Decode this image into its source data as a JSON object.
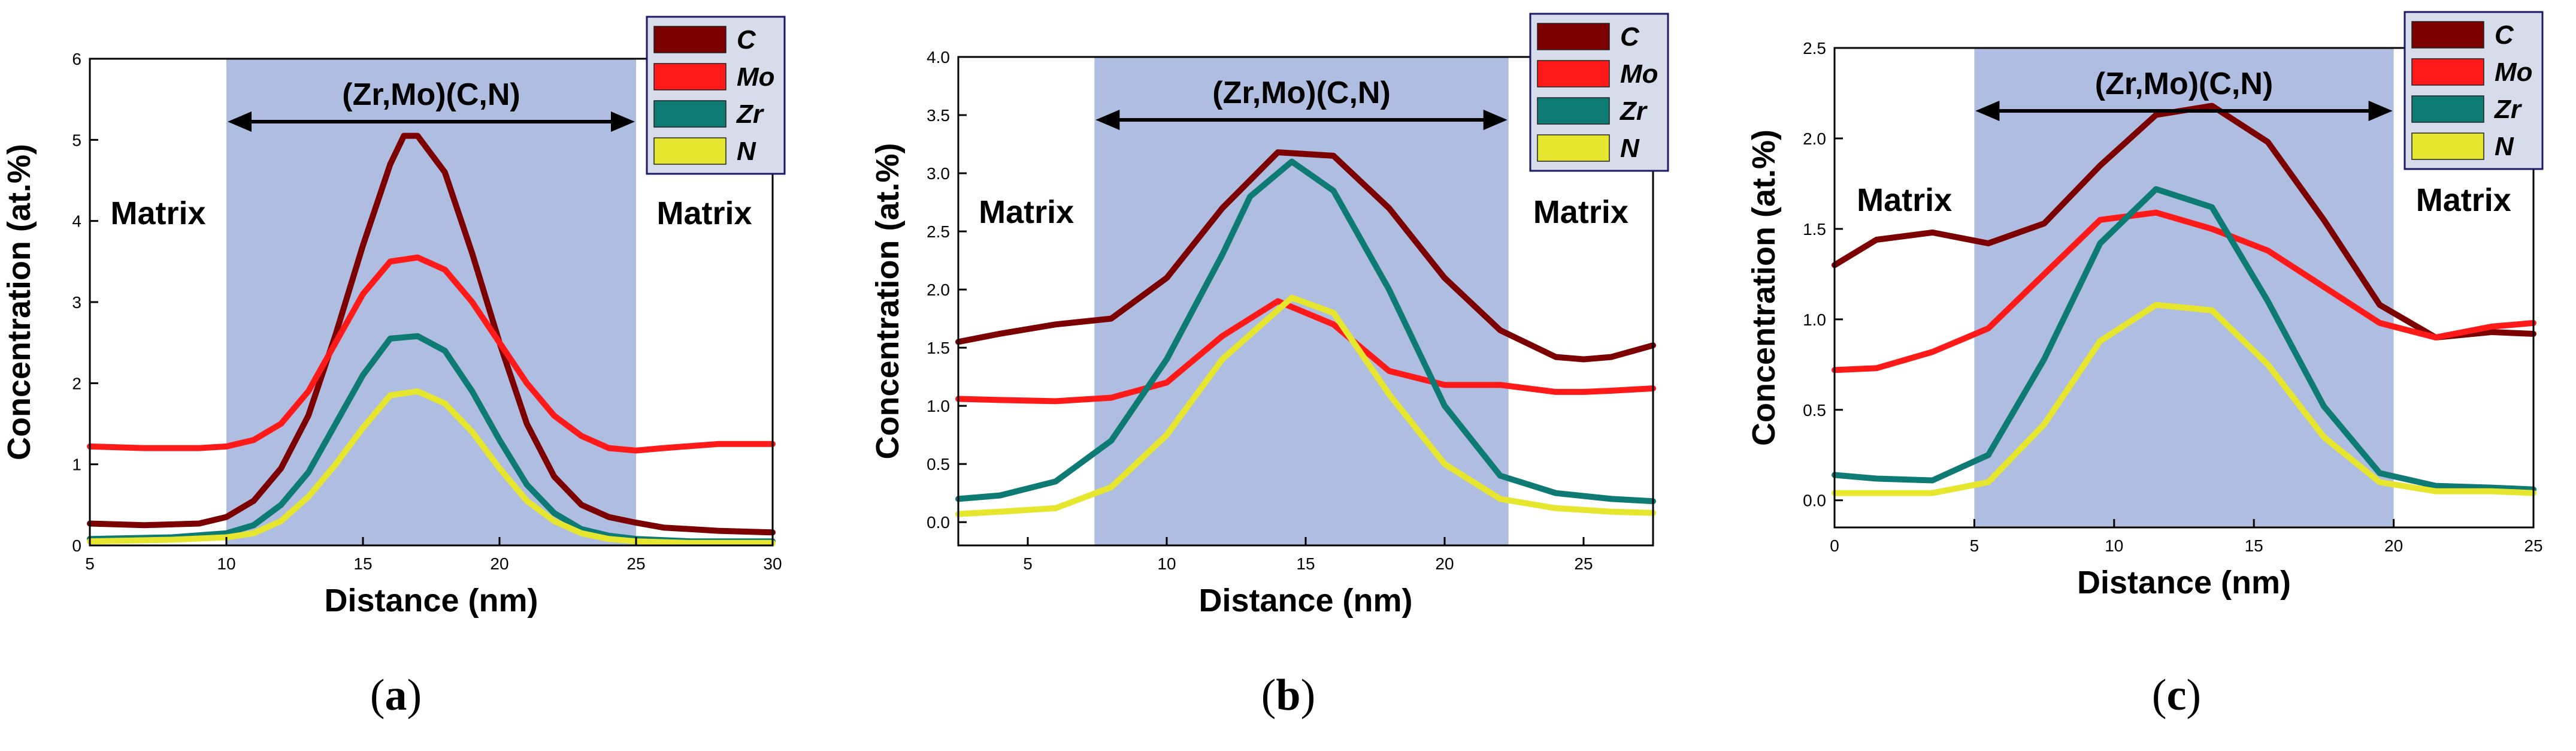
{
  "colors": {
    "C": "#7d0000",
    "Mo": "#ff1a1a",
    "Zr": "#0d7a74",
    "N": "#e6e62e",
    "shade": "#aebde0",
    "legend_bg": "#d6dcea"
  },
  "chart_data": [
    {
      "type": "line",
      "title": "",
      "xlabel": "Distance (nm)",
      "ylabel": "Concentration (at.%)",
      "xlim": [
        5,
        30
      ],
      "ylim": [
        0,
        6
      ],
      "xticks": [
        5,
        10,
        15,
        20,
        25,
        30
      ],
      "yticks": [
        0,
        1,
        2,
        3,
        4,
        5,
        6
      ],
      "precipitate_region": [
        10,
        25
      ],
      "precipitate_label": "(Zr,Mo)(C,N)",
      "matrix_label_left": "Matrix",
      "matrix_label_right": "Matrix",
      "legend": [
        "C",
        "Mo",
        "Zr",
        "N"
      ],
      "caption_open": "(",
      "caption_letter": "a",
      "caption_close": ")",
      "series": [
        {
          "name": "C",
          "x": [
            5,
            7,
            9,
            10,
            11,
            12,
            13,
            14,
            15,
            16,
            16.5,
            17,
            18,
            19,
            20,
            21,
            22,
            23,
            24,
            25,
            26,
            28,
            30
          ],
          "values": [
            0.27,
            0.25,
            0.27,
            0.35,
            0.55,
            0.95,
            1.6,
            2.6,
            3.7,
            4.7,
            5.05,
            5.05,
            4.6,
            3.6,
            2.5,
            1.5,
            0.85,
            0.5,
            0.35,
            0.28,
            0.22,
            0.18,
            0.16
          ]
        },
        {
          "name": "Mo",
          "x": [
            5,
            7,
            9,
            10,
            11,
            12,
            13,
            14,
            15,
            16,
            17,
            18,
            19,
            20,
            21,
            22,
            23,
            24,
            25,
            26,
            28,
            30
          ],
          "values": [
            1.22,
            1.2,
            1.2,
            1.22,
            1.3,
            1.5,
            1.9,
            2.5,
            3.1,
            3.5,
            3.55,
            3.4,
            3.0,
            2.5,
            2.0,
            1.6,
            1.35,
            1.2,
            1.17,
            1.2,
            1.25,
            1.25
          ]
        },
        {
          "name": "Zr",
          "x": [
            5,
            8,
            10,
            11,
            12,
            13,
            14,
            15,
            16,
            17,
            18,
            19,
            20,
            21,
            22,
            23,
            24,
            25,
            27,
            30
          ],
          "values": [
            0.08,
            0.1,
            0.15,
            0.25,
            0.5,
            0.9,
            1.5,
            2.1,
            2.55,
            2.58,
            2.4,
            1.9,
            1.3,
            0.75,
            0.4,
            0.2,
            0.12,
            0.08,
            0.05,
            0.05
          ]
        },
        {
          "name": "N",
          "x": [
            5,
            8,
            10,
            11,
            12,
            13,
            14,
            15,
            16,
            17,
            18,
            19,
            20,
            21,
            22,
            23,
            24,
            25,
            27,
            30
          ],
          "values": [
            0.05,
            0.07,
            0.1,
            0.15,
            0.3,
            0.6,
            1.0,
            1.45,
            1.85,
            1.9,
            1.75,
            1.4,
            0.95,
            0.55,
            0.3,
            0.15,
            0.08,
            0.05,
            0.03,
            0.03
          ]
        }
      ]
    },
    {
      "type": "line",
      "title": "",
      "xlabel": "Distance (nm)",
      "ylabel": "Concentration (at.%)",
      "xlim": [
        2.5,
        27.5
      ],
      "ylim": [
        -0.2,
        4.0
      ],
      "xticks": [
        5,
        10,
        15,
        20,
        25
      ],
      "yticks": [
        0.0,
        0.5,
        1.0,
        1.5,
        2.0,
        2.5,
        3.0,
        3.5,
        4.0
      ],
      "ytick_decimals": 1,
      "precipitate_region": [
        7.4,
        22.3
      ],
      "precipitate_label": "(Zr,Mo)(C,N)",
      "matrix_label_left": "Matrix",
      "matrix_label_right": "Matrix",
      "legend": [
        "C",
        "Mo",
        "Zr",
        "N"
      ],
      "caption_open": "(",
      "caption_letter": "b",
      "caption_close": ")",
      "series": [
        {
          "name": "C",
          "x": [
            2.5,
            4,
            6,
            8,
            10,
            12,
            14,
            16,
            18,
            20,
            22,
            24,
            25,
            26,
            27.5
          ],
          "values": [
            1.55,
            1.62,
            1.7,
            1.75,
            2.1,
            2.7,
            3.18,
            3.15,
            2.7,
            2.1,
            1.65,
            1.42,
            1.4,
            1.42,
            1.52
          ]
        },
        {
          "name": "Mo",
          "x": [
            2.5,
            4,
            6,
            8,
            10,
            12,
            14,
            16,
            18,
            20,
            22,
            24,
            25,
            26,
            27.5
          ],
          "values": [
            1.06,
            1.05,
            1.04,
            1.07,
            1.2,
            1.6,
            1.9,
            1.7,
            1.3,
            1.18,
            1.18,
            1.12,
            1.12,
            1.13,
            1.15
          ]
        },
        {
          "name": "Zr",
          "x": [
            2.5,
            4,
            6,
            8,
            10,
            12,
            13,
            14.5,
            16,
            18,
            20,
            22,
            24,
            26,
            27.5
          ],
          "values": [
            0.2,
            0.23,
            0.35,
            0.7,
            1.4,
            2.3,
            2.8,
            3.1,
            2.85,
            2.0,
            1.0,
            0.4,
            0.25,
            0.2,
            0.18
          ]
        },
        {
          "name": "N",
          "x": [
            2.5,
            4,
            6,
            8,
            10,
            12,
            14.5,
            16,
            18,
            20,
            22,
            24,
            26,
            27.5
          ],
          "values": [
            0.07,
            0.09,
            0.12,
            0.3,
            0.75,
            1.4,
            1.93,
            1.8,
            1.1,
            0.5,
            0.2,
            0.12,
            0.09,
            0.08
          ]
        }
      ]
    },
    {
      "type": "line",
      "title": "",
      "xlabel": "Distance (nm)",
      "ylabel": "Concentration (at.%)",
      "xlim": [
        0,
        25
      ],
      "ylim": [
        -0.15,
        2.5
      ],
      "xticks": [
        0,
        5,
        10,
        15,
        20,
        25
      ],
      "yticks": [
        0.0,
        0.5,
        1.0,
        1.5,
        2.0,
        2.5
      ],
      "ytick_decimals": 1,
      "precipitate_region": [
        5,
        20
      ],
      "precipitate_label": "(Zr,Mo)(C,N)",
      "matrix_label_left": "Matrix",
      "matrix_label_right": "Matrix",
      "legend": [
        "C",
        "Mo",
        "Zr",
        "N"
      ],
      "caption_open": "(",
      "caption_letter": "c",
      "caption_close": ")",
      "series": [
        {
          "name": "C",
          "x": [
            0,
            1.5,
            3.5,
            5.5,
            7.5,
            9.5,
            11.5,
            13.5,
            15.5,
            17.5,
            19.5,
            21.5,
            23.5,
            25
          ],
          "values": [
            1.3,
            1.44,
            1.48,
            1.42,
            1.53,
            1.85,
            2.13,
            2.18,
            1.98,
            1.55,
            1.08,
            0.9,
            0.93,
            0.92
          ]
        },
        {
          "name": "Mo",
          "x": [
            0,
            1.5,
            3.5,
            5.5,
            7.5,
            9.5,
            11.5,
            13.5,
            15.5,
            17.5,
            19.5,
            21.5,
            23.5,
            25
          ],
          "values": [
            0.72,
            0.73,
            0.82,
            0.95,
            1.25,
            1.55,
            1.59,
            1.5,
            1.38,
            1.18,
            0.98,
            0.9,
            0.96,
            0.98
          ]
        },
        {
          "name": "Zr",
          "x": [
            0,
            1.5,
            3.5,
            5.5,
            7.5,
            9.5,
            11.5,
            13.5,
            15.5,
            17.5,
            19.5,
            21.5,
            23.5,
            25
          ],
          "values": [
            0.14,
            0.12,
            0.11,
            0.25,
            0.78,
            1.42,
            1.72,
            1.62,
            1.1,
            0.52,
            0.15,
            0.08,
            0.07,
            0.06
          ]
        },
        {
          "name": "N",
          "x": [
            0,
            1.5,
            3.5,
            5.5,
            7.5,
            9.5,
            11.5,
            13.5,
            15.5,
            17.5,
            19.5,
            21.5,
            23.5,
            25
          ],
          "values": [
            0.04,
            0.04,
            0.04,
            0.1,
            0.42,
            0.88,
            1.08,
            1.05,
            0.75,
            0.35,
            0.1,
            0.05,
            0.05,
            0.04
          ]
        }
      ]
    }
  ]
}
